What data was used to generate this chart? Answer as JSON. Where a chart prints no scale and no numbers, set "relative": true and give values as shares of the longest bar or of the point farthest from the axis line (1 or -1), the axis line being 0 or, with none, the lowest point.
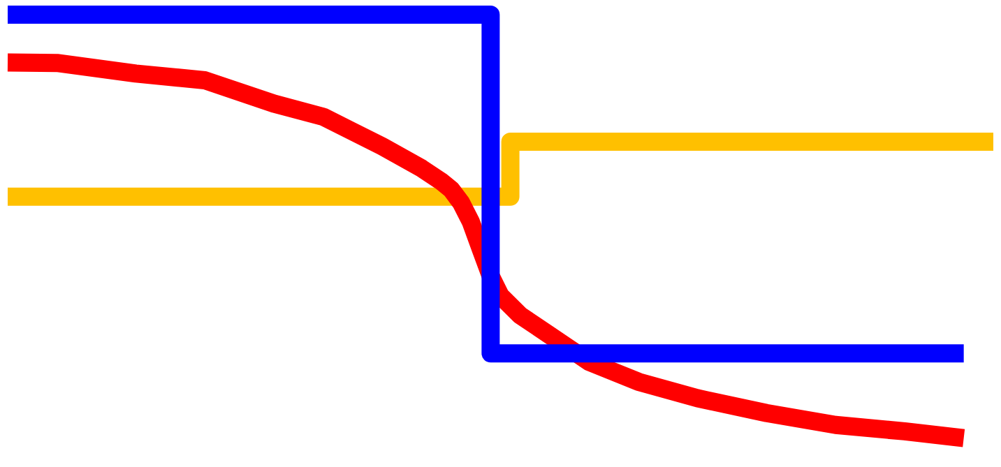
{
  "chart_data": {
    "type": "line",
    "relative": true,
    "legend": false,
    "categories": [
      null,
      null,
      null,
      null,
      null,
      null,
      null,
      null,
      null,
      null,
      null,
      null,
      null,
      null,
      null,
      null,
      null,
      null,
      null,
      null,
      null,
      null,
      null,
      null,
      null,
      null,
      null,
      null,
      null,
      null,
      null,
      null,
      null,
      null,
      null,
      null,
      null,
      null,
      null,
      null,
      null,
      null,
      null,
      null,
      null,
      null,
      null,
      null,
      null,
      null,
      null,
      null,
      null,
      null,
      null,
      null,
      null,
      null,
      null,
      null,
      null,
      null,
      null,
      null,
      null,
      null,
      null,
      null,
      null,
      null,
      null,
      null,
      null,
      null,
      null,
      null,
      null,
      null,
      null,
      null,
      null,
      null,
      null,
      null,
      null,
      null,
      null,
      null,
      null,
      null,
      null,
      null,
      null,
      null,
      null,
      null,
      null,
      null,
      null,
      null,
      null
    ],
    "series": [
      {
        "type": "step",
        "color": "#0000ff",
        "values": [
          1,
          null,
          null,
          null,
          null,
          null,
          null,
          null,
          null,
          null,
          null,
          null,
          null,
          null,
          null,
          null,
          null,
          null,
          null,
          null,
          null,
          null,
          null,
          null,
          null,
          null,
          null,
          null,
          null,
          null,
          null,
          null,
          null,
          null,
          null,
          null,
          null,
          null,
          null,
          null,
          null,
          null,
          null,
          null,
          null,
          null,
          null,
          null,
          1,
          0.2,
          null,
          null,
          null,
          null,
          null,
          null,
          null,
          null,
          null,
          null,
          null,
          null,
          null,
          null,
          null,
          null,
          null,
          null,
          null,
          null,
          null,
          null,
          null,
          null,
          null,
          null,
          null,
          null,
          null,
          null,
          null,
          null,
          null,
          null,
          null,
          null,
          null,
          null,
          null,
          null,
          null,
          null,
          null,
          null,
          null,
          null,
          null,
          0.2,
          null,
          null,
          null
        ]
      },
      {
        "type": "line",
        "color": "#ff0000",
        "values": [
          0.887,
          null,
          null,
          null,
          null,
          0.886,
          null,
          null,
          null,
          null,
          null,
          null,
          null,
          0.861,
          null,
          null,
          null,
          null,
          null,
          null,
          0.845,
          null,
          null,
          null,
          null,
          null,
          null,
          0.79,
          null,
          null,
          null,
          null,
          0.759,
          null,
          null,
          null,
          null,
          null,
          0.689,
          null,
          null,
          null,
          0.637,
          null,
          0.606,
          0.587,
          0.556,
          0.51,
          0.446,
          0.383,
          0.336,
          0.313,
          0.29,
          null,
          null,
          0.243,
          null,
          null,
          null,
          0.18,
          null,
          null,
          null,
          null,
          0.133,
          null,
          null,
          null,
          null,
          null,
          0.094,
          null,
          null,
          null,
          null,
          null,
          null,
          0.059,
          null,
          null,
          null,
          null,
          null,
          null,
          0.031,
          null,
          null,
          null,
          null,
          null,
          null,
          0.016,
          null,
          null,
          null,
          null,
          null,
          0,
          null,
          null,
          null
        ]
      },
      {
        "type": "step",
        "color": "#ffc000",
        "values": [
          0.57,
          null,
          null,
          null,
          null,
          null,
          null,
          null,
          null,
          null,
          null,
          null,
          null,
          null,
          null,
          null,
          null,
          null,
          null,
          null,
          null,
          null,
          null,
          null,
          null,
          null,
          null,
          null,
          null,
          null,
          null,
          null,
          null,
          null,
          null,
          null,
          null,
          null,
          null,
          null,
          null,
          null,
          null,
          null,
          null,
          null,
          null,
          null,
          null,
          null,
          0.57,
          0.7,
          null,
          null,
          null,
          null,
          null,
          null,
          null,
          null,
          null,
          null,
          null,
          null,
          null,
          null,
          null,
          null,
          null,
          null,
          null,
          null,
          null,
          null,
          null,
          null,
          null,
          null,
          null,
          null,
          null,
          null,
          null,
          null,
          null,
          null,
          null,
          null,
          null,
          null,
          null,
          null,
          null,
          null,
          null,
          null,
          null,
          null,
          null,
          null,
          0.7
        ]
      }
    ]
  }
}
